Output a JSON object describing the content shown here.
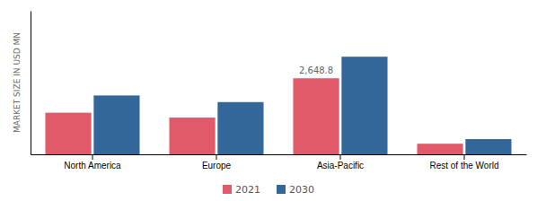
{
  "chart_data": {
    "type": "bar",
    "categories": [
      "North America",
      "Europe",
      "Asia-Pacific",
      "Rest of the World"
    ],
    "series": [
      {
        "name": "2021",
        "color": "#e05a6a",
        "values": [
          1450,
          1280,
          2648.8,
          370
        ]
      },
      {
        "name": "2030",
        "color": "#336699",
        "values": [
          2050,
          1820,
          3400,
          530
        ]
      }
    ],
    "ylabel": "MARKET SIZE IN USD MN",
    "ylim": [
      0,
      5000
    ],
    "yticks": [],
    "tick_labels": "x",
    "grid": false,
    "legend": "bottom",
    "annotations": [
      {
        "text": "2,648.8",
        "x": "Asia-Pacific",
        "y": 2648.8,
        "series": "2021"
      }
    ]
  }
}
